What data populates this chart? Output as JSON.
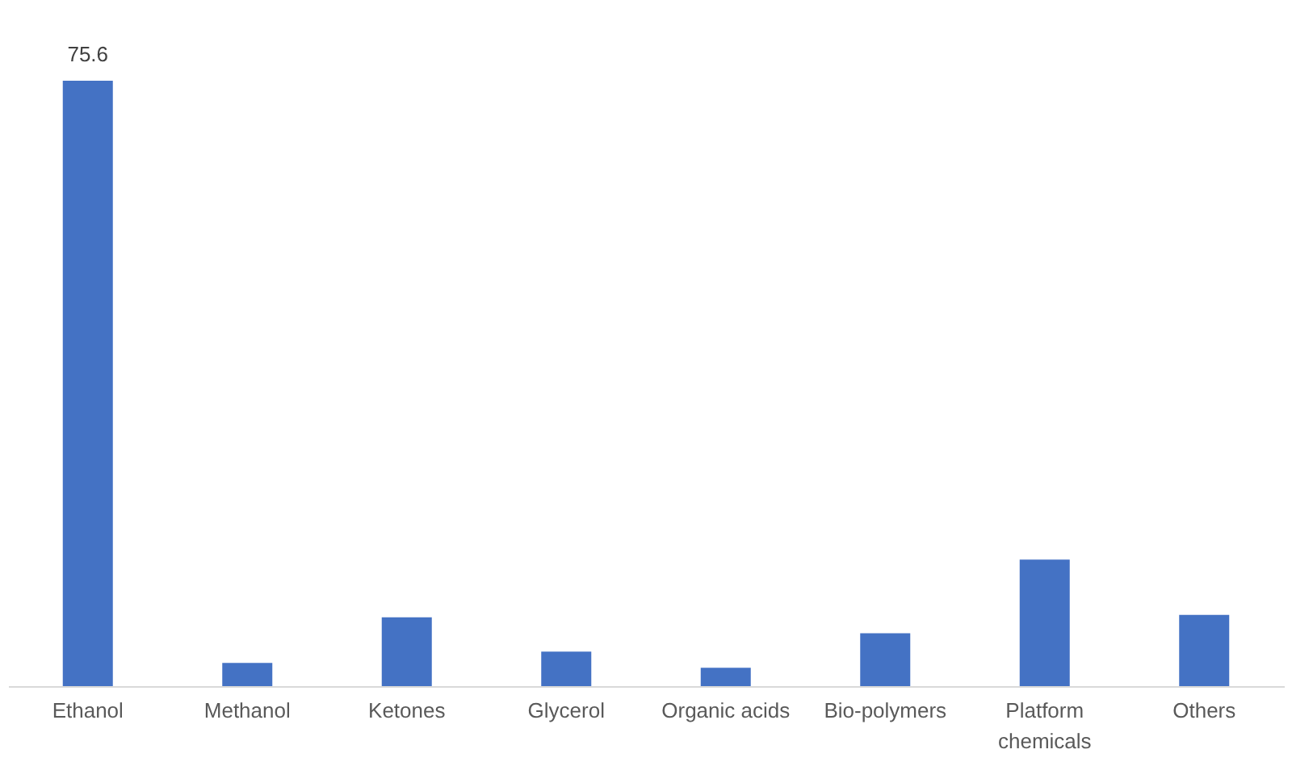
{
  "chart_data": {
    "type": "bar",
    "categories": [
      "Ethanol",
      "Methanol",
      "Ketones",
      "Glycerol",
      "Organic acids",
      "Bio-polymers",
      "Platform chemicals",
      "Others"
    ],
    "values": [
      75.6,
      2.9,
      8.6,
      4.3,
      2.3,
      6.6,
      15.8,
      8.9
    ],
    "value_labels": [
      "75.6",
      null,
      null,
      null,
      null,
      null,
      null,
      null
    ],
    "color": "#4472c4"
  }
}
